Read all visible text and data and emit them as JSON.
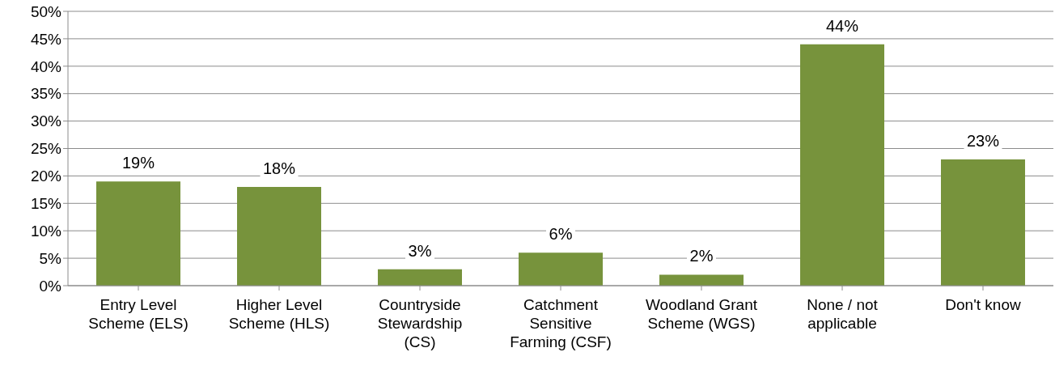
{
  "chart_data": {
    "type": "bar",
    "categories": [
      "Entry Level Scheme (ELS)",
      "Higher Level Scheme (HLS)",
      "Countryside Stewardship (CS)",
      "Catchment Sensitive Farming (CSF)",
      "Woodland Grant Scheme (WGS)",
      "None / not applicable",
      "Don't know"
    ],
    "values": [
      19,
      18,
      3,
      6,
      2,
      44,
      23
    ],
    "value_labels": [
      "19%",
      "18%",
      "3%",
      "6%",
      "2%",
      "44%",
      "23%"
    ],
    "color": "#77933c",
    "ylim": [
      0,
      50
    ],
    "yticks": [
      {
        "value": 0,
        "label": "0%"
      },
      {
        "value": 5,
        "label": "5%"
      },
      {
        "value": 10,
        "label": "10%"
      },
      {
        "value": 15,
        "label": "15%"
      },
      {
        "value": 20,
        "label": "20%"
      },
      {
        "value": 25,
        "label": "25%"
      },
      {
        "value": 30,
        "label": "30%"
      },
      {
        "value": 35,
        "label": "35%"
      },
      {
        "value": 40,
        "label": "40%"
      },
      {
        "value": 45,
        "label": "45%"
      },
      {
        "value": 50,
        "label": "50%"
      }
    ],
    "grid": "y",
    "legend": false
  }
}
